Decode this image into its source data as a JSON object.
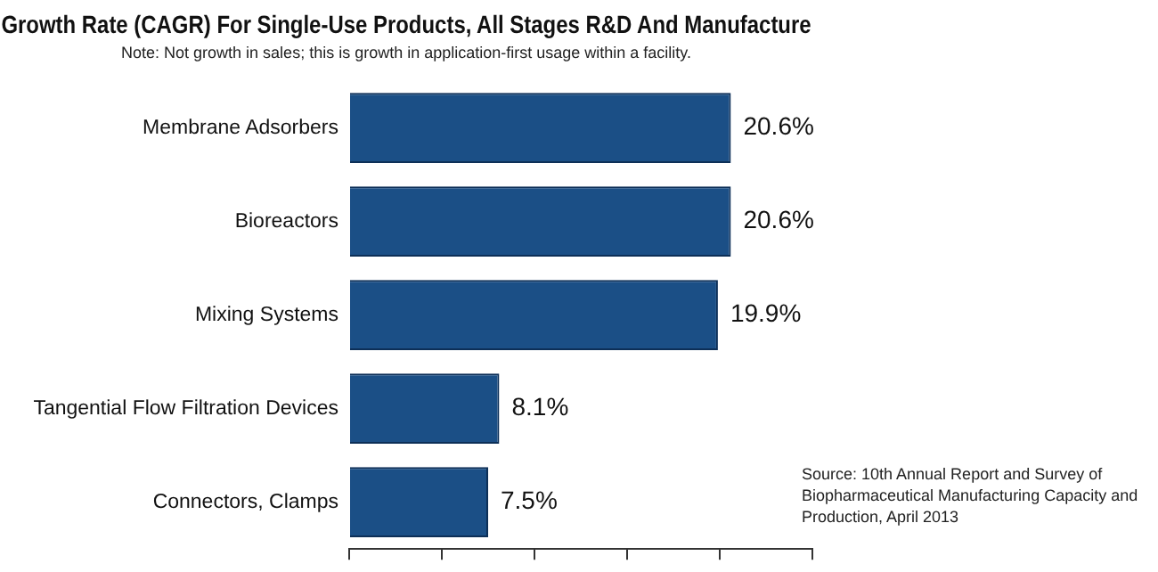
{
  "chart_data": {
    "type": "bar",
    "orientation": "horizontal",
    "title": "Growth Rate (CAGR) For Single-Use Products, All Stages R&D And Manufacture",
    "subtitle": "Note: Not growth in sales; this is growth in application-first usage within a facility.",
    "categories": [
      "Membrane Adsorbers",
      "Bioreactors",
      "Mixing Systems",
      "Tangential Flow Filtration Devices",
      "Connectors, Clamps"
    ],
    "values": [
      20.6,
      20.6,
      19.9,
      8.1,
      7.5
    ],
    "value_labels": [
      "20.6%",
      "20.6%",
      "19.9%",
      "8.1%",
      "7.5%"
    ],
    "color": "#1b4f86",
    "xlim": [
      0,
      25
    ],
    "xticks": [
      {
        "value": 0,
        "label": null
      },
      {
        "value": 5,
        "label": null
      },
      {
        "value": 10,
        "label": null
      },
      {
        "value": 15,
        "label": null
      },
      {
        "value": 20,
        "label": null
      },
      {
        "value": 25,
        "label": null
      }
    ],
    "tick_labels": "y",
    "grid": false,
    "legend": false,
    "annotations": [
      "Source: 10th Annual Report and Survey of Biopharmaceutical Manufacturing Capacity and Production, April 2013"
    ]
  }
}
